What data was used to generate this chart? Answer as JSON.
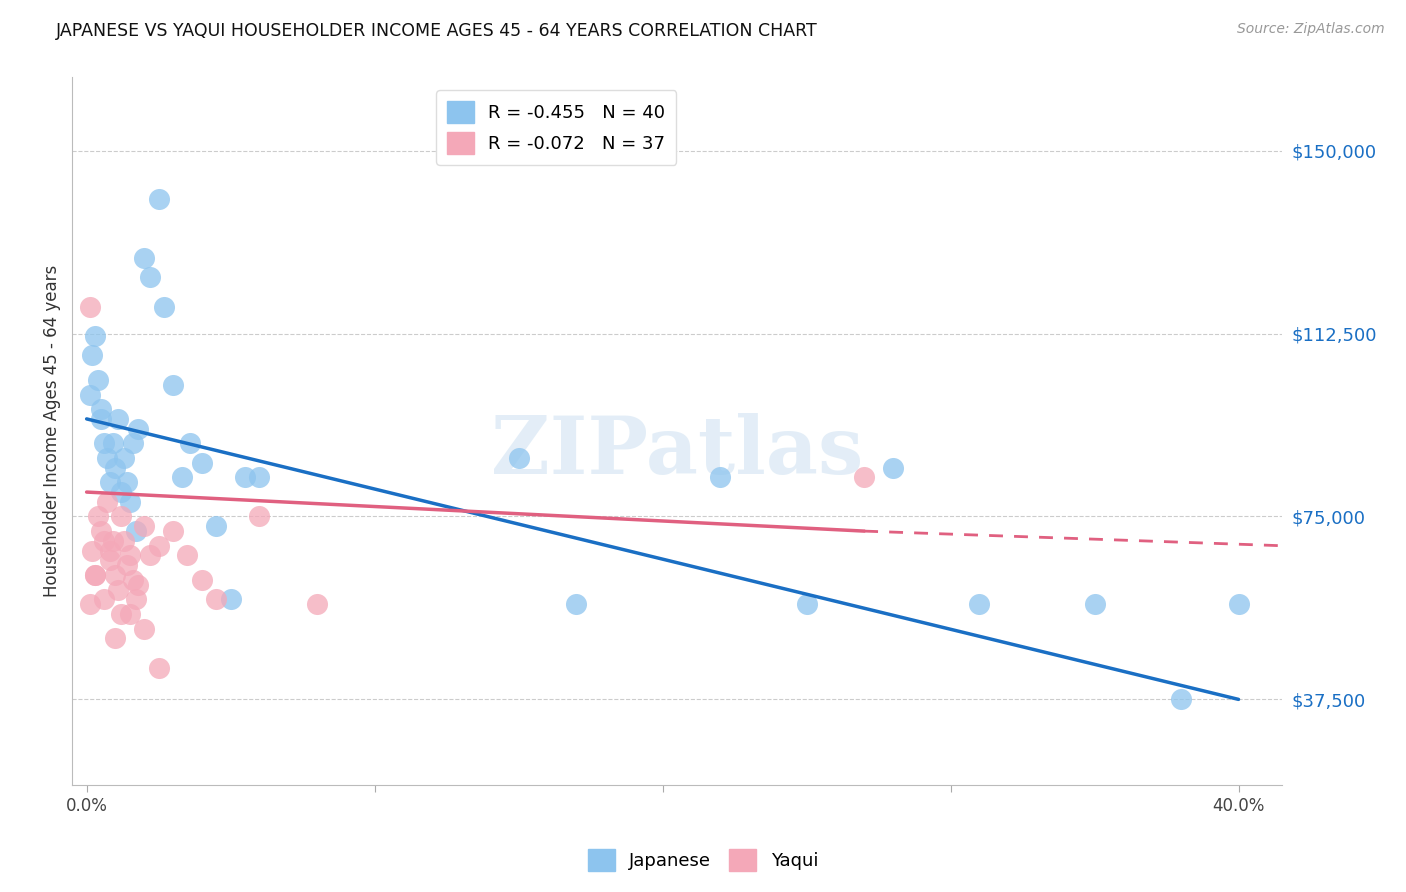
{
  "title": "JAPANESE VS YAQUI HOUSEHOLDER INCOME AGES 45 - 64 YEARS CORRELATION CHART",
  "source": "Source: ZipAtlas.com",
  "ylabel": "Householder Income Ages 45 - 64 years",
  "ytick_labels": [
    "$37,500",
    "$75,000",
    "$112,500",
    "$150,000"
  ],
  "ytick_vals": [
    37500,
    75000,
    112500,
    150000
  ],
  "xtick_labels": [
    "0.0%",
    "",
    "",
    "",
    "40.0%"
  ],
  "xtick_vals": [
    0.0,
    0.1,
    0.2,
    0.3,
    0.4
  ],
  "ylim": [
    20000,
    165000
  ],
  "xlim": [
    -0.005,
    0.415
  ],
  "legend_blue": "R = -0.455   N = 40",
  "legend_pink": "R = -0.072   N = 37",
  "watermark": "ZIPatlas",
  "blue_color": "#8DC4EE",
  "pink_color": "#F4A8B8",
  "trendline_blue": "#1A6FC4",
  "trendline_pink": "#E06080",
  "blue_trend_x0": 0.0,
  "blue_trend_y0": 95000,
  "blue_trend_x1": 0.4,
  "blue_trend_y1": 37500,
  "pink_trend_x0": 0.0,
  "pink_trend_y0": 80000,
  "pink_trend_x1_solid": 0.27,
  "pink_trend_y1_solid": 72000,
  "pink_trend_x1_dash": 0.415,
  "pink_trend_y1_dash": 69000,
  "japanese_x": [
    0.001,
    0.002,
    0.003,
    0.004,
    0.005,
    0.006,
    0.007,
    0.008,
    0.009,
    0.01,
    0.011,
    0.012,
    0.013,
    0.014,
    0.015,
    0.016,
    0.017,
    0.018,
    0.02,
    0.022,
    0.025,
    0.027,
    0.03,
    0.033,
    0.036,
    0.04,
    0.045,
    0.05,
    0.055,
    0.06,
    0.15,
    0.17,
    0.22,
    0.25,
    0.28,
    0.31,
    0.35,
    0.38,
    0.4,
    0.005
  ],
  "japanese_y": [
    100000,
    108000,
    112000,
    103000,
    95000,
    90000,
    87000,
    82000,
    90000,
    85000,
    95000,
    80000,
    87000,
    82000,
    78000,
    90000,
    72000,
    93000,
    128000,
    124000,
    140000,
    118000,
    102000,
    83000,
    90000,
    86000,
    73000,
    58000,
    83000,
    83000,
    87000,
    57000,
    83000,
    57000,
    85000,
    57000,
    57000,
    37500,
    57000,
    97000
  ],
  "yaqui_x": [
    0.001,
    0.002,
    0.003,
    0.004,
    0.005,
    0.006,
    0.007,
    0.008,
    0.009,
    0.01,
    0.011,
    0.012,
    0.013,
    0.014,
    0.015,
    0.016,
    0.017,
    0.018,
    0.02,
    0.022,
    0.025,
    0.03,
    0.035,
    0.04,
    0.045,
    0.06,
    0.08,
    0.27,
    0.001,
    0.003,
    0.006,
    0.008,
    0.01,
    0.012,
    0.015,
    0.02,
    0.025
  ],
  "yaqui_y": [
    118000,
    68000,
    63000,
    75000,
    72000,
    70000,
    78000,
    66000,
    70000,
    63000,
    60000,
    75000,
    70000,
    65000,
    67000,
    62000,
    58000,
    61000,
    73000,
    67000,
    69000,
    72000,
    67000,
    62000,
    58000,
    75000,
    57000,
    83000,
    57000,
    63000,
    58000,
    68000,
    50000,
    55000,
    55000,
    52000,
    44000
  ]
}
